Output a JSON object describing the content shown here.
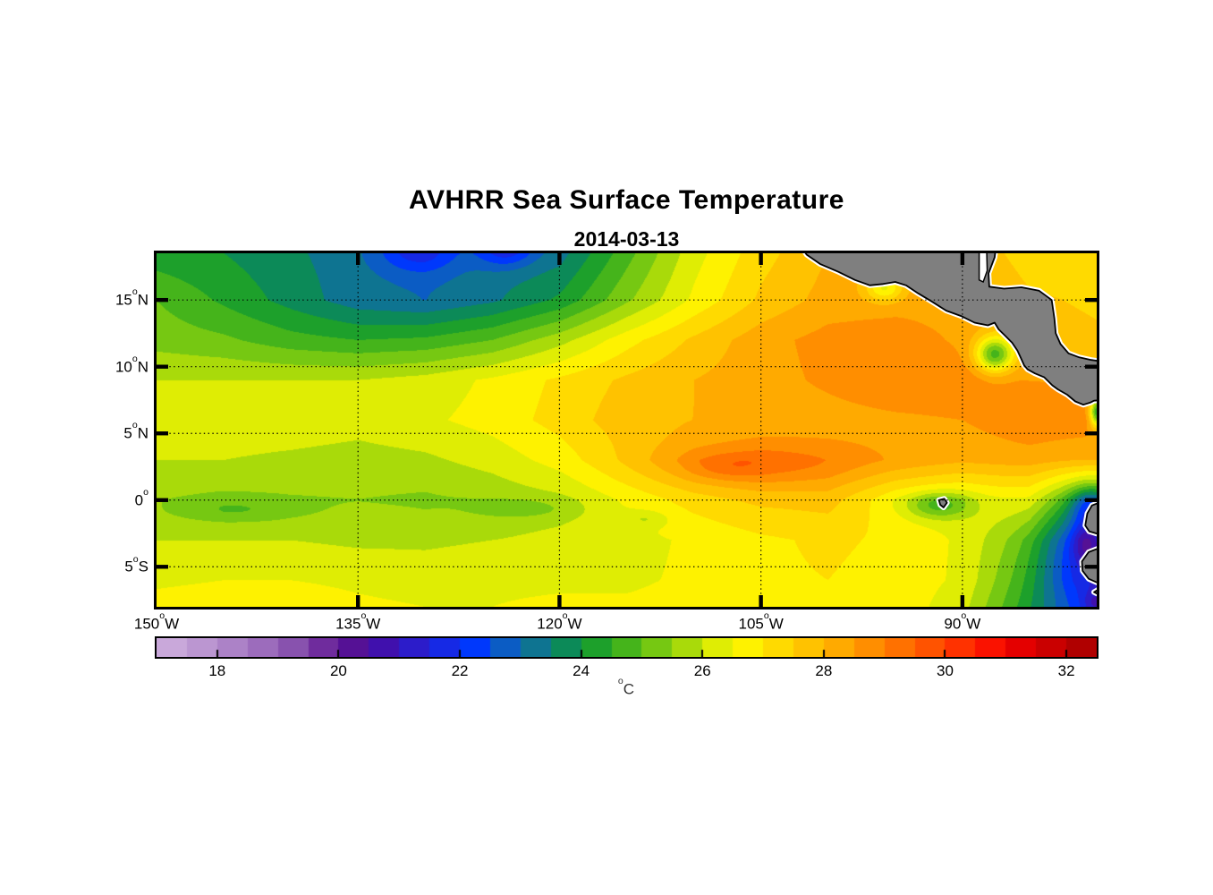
{
  "figure": {
    "title": "AVHRR Sea Surface Temperature",
    "subtitle": "2014-03-13",
    "background": "#ffffff"
  },
  "chart_data": {
    "type": "heatmap",
    "title": "AVHRR Sea Surface Temperature",
    "subtitle": "2014-03-13",
    "lon_range": [
      -150,
      -80
    ],
    "lat_range": [
      -8,
      18.5
    ],
    "grid_on": true,
    "lon_ticks": [
      {
        "lon": -150,
        "num": "150",
        "deg": "o",
        "hemi": "W",
        "grid": false
      },
      {
        "lon": -135,
        "num": "135",
        "deg": "o",
        "hemi": "W",
        "grid": true
      },
      {
        "lon": -120,
        "num": "120",
        "deg": "o",
        "hemi": "W",
        "grid": true
      },
      {
        "lon": -105,
        "num": "105",
        "deg": "o",
        "hemi": "W",
        "grid": true
      },
      {
        "lon": -90,
        "num": "90",
        "deg": "o",
        "hemi": "W",
        "grid": true
      }
    ],
    "lat_ticks": [
      {
        "lat": 15,
        "num": "15",
        "deg": "o",
        "hemi": "N",
        "grid": true
      },
      {
        "lat": 10,
        "num": "10",
        "deg": "o",
        "hemi": "N",
        "grid": true
      },
      {
        "lat": 5,
        "num": "5",
        "deg": "o",
        "hemi": "N",
        "grid": true
      },
      {
        "lat": 0,
        "num": "0",
        "deg": "o",
        "hemi": "",
        "grid": true
      },
      {
        "lat": -5,
        "num": "5",
        "deg": "o",
        "hemi": "S",
        "grid": true
      }
    ],
    "sst_grid": {
      "lons": [
        -150,
        -145,
        -140,
        -135,
        -130,
        -125,
        -120,
        -115,
        -110,
        -105,
        -100,
        -95,
        -90,
        -85,
        -80
      ],
      "lats": [
        18.5,
        15,
        12,
        9,
        6,
        3,
        0,
        -3,
        -6,
        -8
      ],
      "values_c": [
        [
          24.2,
          24.0,
          23.6,
          23.2,
          23.0,
          23.2,
          23.3,
          24.8,
          26.3,
          27.3,
          28.0,
          28.2,
          28.0,
          27.2,
          27.0
        ],
        [
          25.0,
          24.4,
          23.8,
          23.2,
          23.0,
          23.4,
          24.1,
          25.4,
          26.6,
          27.6,
          28.2,
          28.3,
          28.3,
          27.6,
          27.4
        ],
        [
          25.3,
          25.1,
          24.7,
          24.5,
          24.6,
          25.0,
          25.8,
          26.8,
          27.6,
          28.3,
          28.7,
          28.8,
          28.4,
          27.8,
          27.6
        ],
        [
          26.0,
          26.0,
          26.0,
          26.0,
          26.2,
          26.6,
          27.1,
          27.6,
          28.0,
          28.3,
          28.6,
          28.9,
          28.9,
          28.5,
          28.4
        ],
        [
          26.2,
          26.3,
          26.3,
          26.2,
          26.4,
          26.7,
          27.2,
          27.8,
          28.0,
          28.2,
          28.3,
          28.4,
          28.5,
          28.9,
          28.8
        ],
        [
          26.0,
          26.0,
          25.9,
          25.8,
          25.9,
          26.2,
          26.7,
          27.5,
          28.3,
          28.6,
          28.5,
          28.3,
          28.1,
          28.3,
          28.2
        ],
        [
          25.6,
          25.4,
          25.5,
          25.5,
          25.4,
          25.6,
          25.9,
          26.6,
          27.2,
          27.6,
          27.7,
          26.6,
          26.2,
          26.6,
          25.0
        ],
        [
          26.0,
          26.0,
          26.0,
          25.9,
          25.9,
          26.0,
          26.1,
          26.3,
          26.6,
          26.9,
          27.1,
          26.9,
          26.4,
          25.2,
          23.5
        ],
        [
          26.4,
          26.5,
          26.5,
          26.4,
          26.3,
          26.4,
          26.4,
          26.4,
          26.6,
          26.9,
          27.0,
          26.8,
          26.4,
          24.6,
          22.5
        ],
        [
          26.7,
          26.8,
          26.8,
          26.6,
          26.5,
          26.5,
          26.6,
          26.6,
          26.7,
          27.0,
          27.0,
          26.8,
          26.2,
          24.2,
          22.3
        ]
      ]
    },
    "anomaly_features": [
      {
        "name": "cool-spot-nw-1",
        "lon": -130.5,
        "lat": 18.8,
        "rlon": 3.0,
        "rlat": 1.7,
        "dt": -1.4
      },
      {
        "name": "cool-spot-nw-2",
        "lon": -124.0,
        "lat": 18.9,
        "rlon": 2.2,
        "rlat": 1.4,
        "dt": -1.6
      },
      {
        "name": "warm-streak-equatorial",
        "lon": -105.0,
        "lat": 2.6,
        "rlon": 7.5,
        "rlat": 1.6,
        "dt": 0.8
      },
      {
        "name": "warm-streak-core",
        "lon": -107.5,
        "lat": 2.4,
        "rlon": 2.6,
        "rlat": 0.9,
        "dt": 0.45
      },
      {
        "name": "papagayo-upwelling",
        "lon": -87.6,
        "lat": 10.9,
        "rlon": 1.4,
        "rlat": 1.3,
        "dt": -3.5
      },
      {
        "name": "tehuantepec-coastal-cool",
        "lon": -95.8,
        "lat": 15.9,
        "rlon": 1.4,
        "rlat": 1.0,
        "dt": -1.8
      },
      {
        "name": "galapagos-cool",
        "lon": -91.8,
        "lat": -0.4,
        "rlon": 2.3,
        "rlat": 1.0,
        "dt": -1.6
      },
      {
        "name": "peru-coastal-cool-zone",
        "lon": -81.3,
        "lat": -3.4,
        "rlon": 3.2,
        "rlat": 4.4,
        "dt": -1.8
      },
      {
        "name": "peru-coastal-blue",
        "lon": -80.8,
        "lat": -3.2,
        "rlon": 1.0,
        "rlat": 1.5,
        "dt": -1.6
      },
      {
        "name": "corner-cool",
        "lon": -80.2,
        "lat": -7.7,
        "rlon": 0.8,
        "rlat": 0.9,
        "dt": -0.9
      },
      {
        "name": "ecuador-coastal-cool",
        "lon": -80.5,
        "lat": -0.4,
        "rlon": 1.4,
        "rlat": 1.4,
        "dt": -1.8
      },
      {
        "name": "panama-gulf-cool",
        "lon": -80.0,
        "lat": 6.6,
        "rlon": 0.5,
        "rlat": 1.1,
        "dt": -4.0
      },
      {
        "name": "equator-streak-west",
        "lon": -144.0,
        "lat": -0.8,
        "rlon": 5.0,
        "rlat": 0.9,
        "dt": -0.6
      },
      {
        "name": "equator-streak-mid",
        "lon": -122.5,
        "lat": -0.7,
        "rlon": 4.0,
        "rlat": 0.8,
        "dt": -0.55
      },
      {
        "name": "equator-speck",
        "lon": -113.5,
        "lat": -1.4,
        "rlon": 1.6,
        "rlat": 0.6,
        "dt": -0.6
      }
    ],
    "colormap": {
      "range_c": [
        17,
        32.5
      ],
      "band_step_c": 0.5,
      "band_colors": [
        "#c9a8da",
        "#bb96d1",
        "#ac82c7",
        "#9c6cbc",
        "#8852ae",
        "#6f2c9d",
        "#551195",
        "#4010ad",
        "#2c1cca",
        "#1629e5",
        "#0038fc",
        "#0b5cc4",
        "#0e7491",
        "#0c8a58",
        "#1da02b",
        "#45b41b",
        "#76c812",
        "#a9da0a",
        "#dfed04",
        "#fef200",
        "#ffda00",
        "#ffc200",
        "#ffaa00",
        "#ff8e00",
        "#ff7100",
        "#ff5300",
        "#ff3200",
        "#fa1200",
        "#e40000",
        "#ca0000",
        "#b00000"
      ]
    },
    "colorbar": {
      "tick_values": [
        18,
        20,
        22,
        24,
        26,
        28,
        30,
        32
      ],
      "unit_sup": "o",
      "unit_base": "C"
    },
    "land": {
      "fill": "#7f7f7f",
      "outline": "#000000",
      "fringe": "#ffffff",
      "polygons": [
        {
          "name": "central-america",
          "pts": [
            [
              -102.0,
              19
            ],
            [
              -101.6,
              18.4
            ],
            [
              -100.6,
              17.7
            ],
            [
              -99.2,
              17.1
            ],
            [
              -98.0,
              16.5
            ],
            [
              -96.9,
              16.1
            ],
            [
              -95.9,
              16.2
            ],
            [
              -95.0,
              16.35
            ],
            [
              -94.2,
              16.1
            ],
            [
              -93.3,
              15.5
            ],
            [
              -92.3,
              14.9
            ],
            [
              -91.2,
              14.2
            ],
            [
              -90.1,
              13.8
            ],
            [
              -89.1,
              13.3
            ],
            [
              -88.1,
              13.1
            ],
            [
              -87.6,
              13.3
            ],
            [
              -87.3,
              12.8
            ],
            [
              -86.9,
              12.4
            ],
            [
              -86.3,
              11.8
            ],
            [
              -85.9,
              11.2
            ],
            [
              -85.65,
              10.65
            ],
            [
              -85.4,
              10.1
            ],
            [
              -85.15,
              9.8
            ],
            [
              -84.6,
              9.5
            ],
            [
              -83.9,
              9.2
            ],
            [
              -83.3,
              8.6
            ],
            [
              -82.9,
              8.3
            ],
            [
              -82.2,
              7.9
            ],
            [
              -81.6,
              7.4
            ],
            [
              -81.0,
              7.15
            ],
            [
              -80.5,
              7.3
            ],
            [
              -80.2,
              7.45
            ],
            [
              -79.7,
              7.5
            ],
            [
              -79.7,
              10.4
            ],
            [
              -80.4,
              10.5
            ],
            [
              -81.3,
              10.7
            ],
            [
              -82.1,
              11.0
            ],
            [
              -82.7,
              11.7
            ],
            [
              -83.05,
              12.5
            ],
            [
              -83.15,
              13.6
            ],
            [
              -83.35,
              15.0
            ],
            [
              -84.3,
              15.7
            ],
            [
              -85.6,
              15.95
            ],
            [
              -86.9,
              15.85
            ],
            [
              -88.0,
              16.0
            ],
            [
              -88.05,
              17.0
            ],
            [
              -87.6,
              18.2
            ],
            [
              -87.5,
              19
            ]
          ]
        },
        {
          "name": "south-america-ecuador",
          "pts": [
            [
              -79.7,
              -0.15
            ],
            [
              -80.35,
              -0.4
            ],
            [
              -80.7,
              -1.0
            ],
            [
              -80.85,
              -1.9
            ],
            [
              -80.55,
              -2.35
            ],
            [
              -79.7,
              -2.6
            ]
          ]
        },
        {
          "name": "south-america-peru",
          "pts": [
            [
              -79.7,
              -3.55
            ],
            [
              -80.6,
              -3.9
            ],
            [
              -81.1,
              -4.6
            ],
            [
              -81.05,
              -5.3
            ],
            [
              -80.6,
              -5.9
            ],
            [
              -79.7,
              -6.3
            ]
          ]
        },
        {
          "name": "south-america-peru-tip",
          "pts": [
            [
              -79.7,
              -6.6
            ],
            [
              -80.2,
              -6.9
            ],
            [
              -79.7,
              -7.15
            ]
          ]
        },
        {
          "name": "galapagos-islands",
          "pts": [
            [
              -91.75,
              0.0
            ],
            [
              -91.35,
              0.1
            ],
            [
              -91.15,
              -0.2
            ],
            [
              -91.4,
              -0.55
            ],
            [
              -91.65,
              -0.35
            ]
          ]
        }
      ],
      "water_gaps": [
        {
          "name": "gulf-of-honduras-gap",
          "pts": [
            [
              -88.75,
              19
            ],
            [
              -88.2,
              19
            ],
            [
              -88.15,
              17.2
            ],
            [
              -88.45,
              16.35
            ],
            [
              -88.75,
              16.5
            ]
          ]
        }
      ]
    }
  }
}
